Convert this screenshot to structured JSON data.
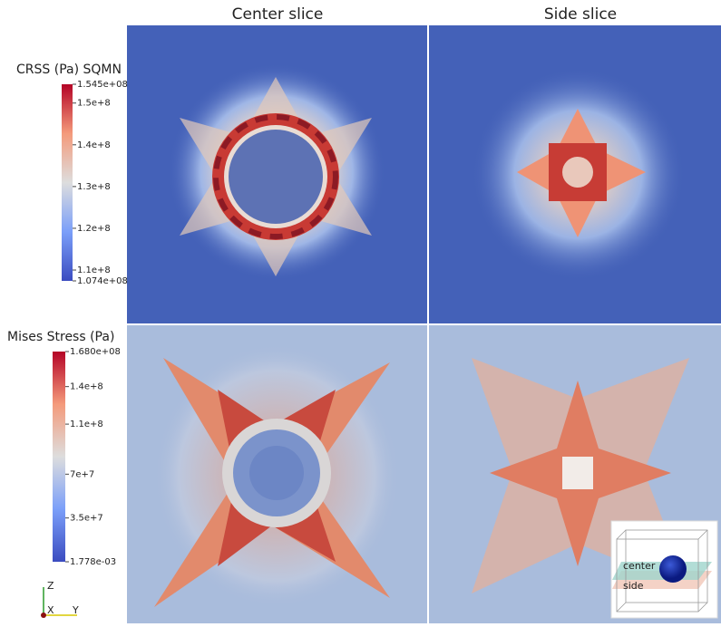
{
  "column_titles": [
    "Center slice",
    "Side slice"
  ],
  "colorbars": [
    {
      "title": "CRSS (Pa) SQMN",
      "range": [
        107400000,
        154500000
      ],
      "ticks": [
        {
          "value": 154500000,
          "label": "1.545e+08"
        },
        {
          "value": 150000000,
          "label": "1.5e+8"
        },
        {
          "value": 140000000,
          "label": "1.4e+8"
        },
        {
          "value": 130000000,
          "label": "1.3e+8"
        },
        {
          "value": 120000000,
          "label": "1.2e+8"
        },
        {
          "value": 110000000,
          "label": "1.1e+8"
        },
        {
          "value": 107400000,
          "label": "1.074e+08"
        }
      ]
    },
    {
      "title": "Mises Stress (Pa)",
      "range": [
        0.001778,
        168000000
      ],
      "ticks": [
        {
          "value": 168000000,
          "label": "1.680e+08"
        },
        {
          "value": 140000000,
          "label": "1.4e+8"
        },
        {
          "value": 110000000,
          "label": "1.1e+8"
        },
        {
          "value": 70000000,
          "label": "7e+7"
        },
        {
          "value": 35000000,
          "label": "3.5e+7"
        },
        {
          "value": 0.001778,
          "label": "1.778e-03"
        }
      ]
    }
  ],
  "axes_triad": {
    "z": "Z",
    "x": "X",
    "y": "Y"
  },
  "inset": {
    "labels": [
      "center",
      "side"
    ]
  }
}
